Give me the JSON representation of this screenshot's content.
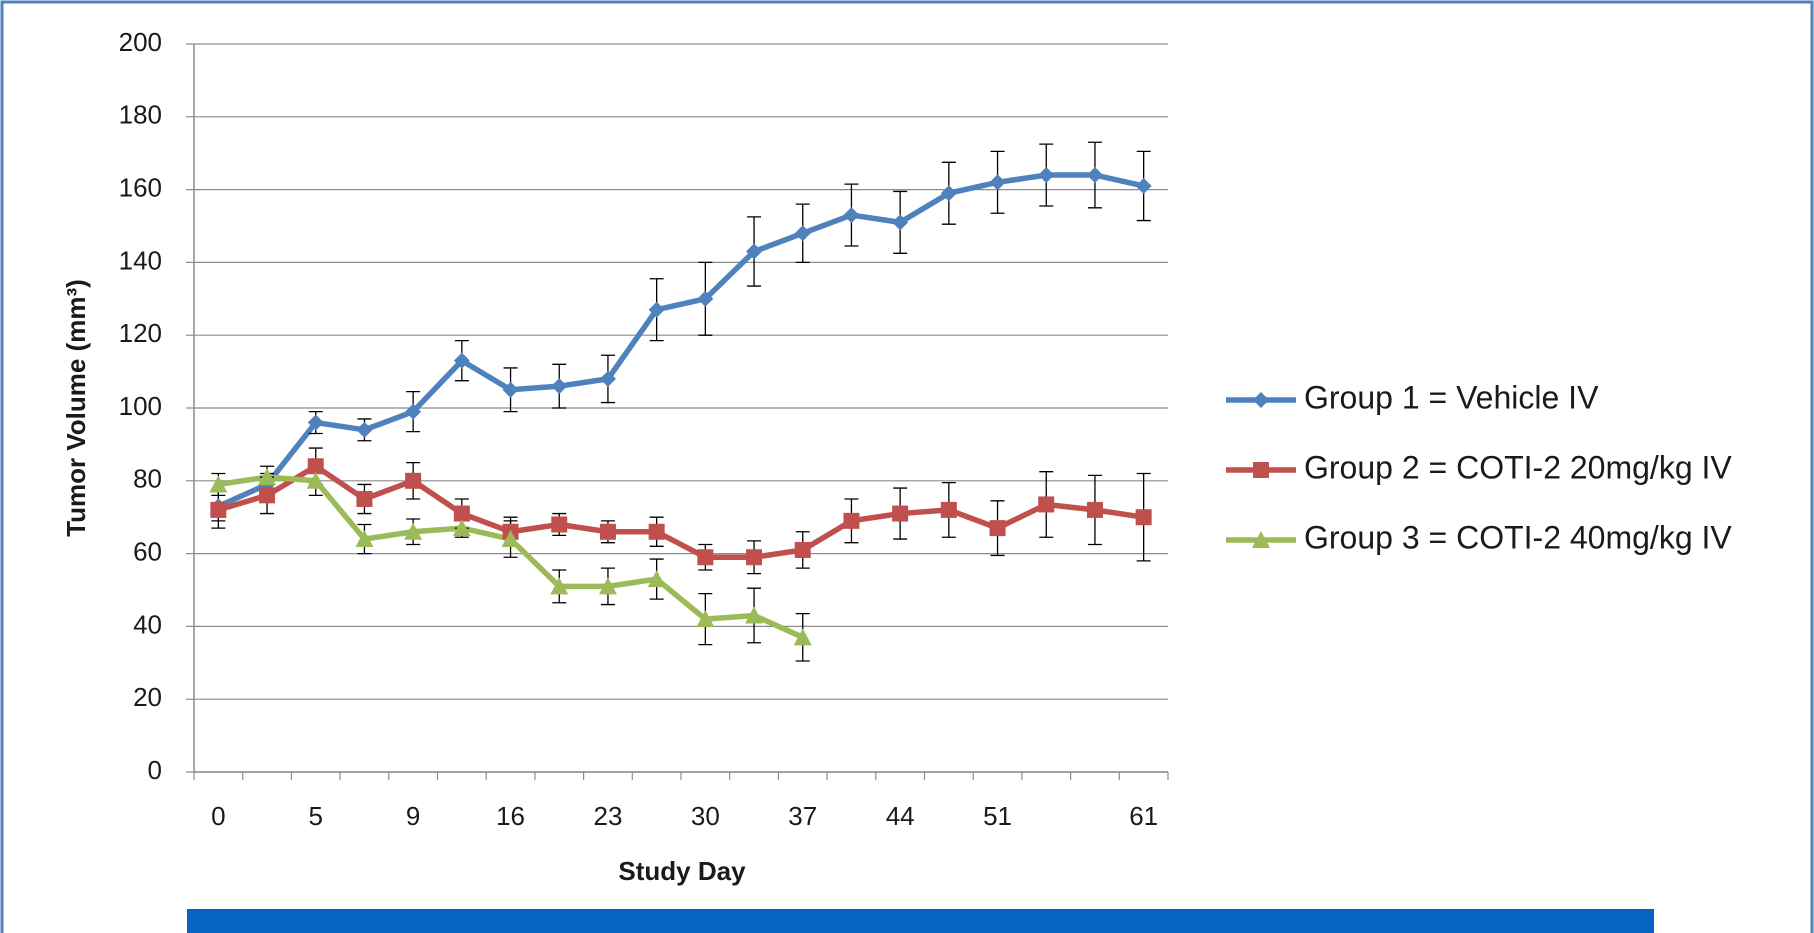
{
  "chart_data": {
    "type": "line",
    "x_label": "Study Day",
    "y_label": "Tumor Volume (mm³)",
    "categories": [
      "0",
      null,
      "5",
      null,
      "9",
      null,
      "16",
      null,
      "23",
      null,
      "30",
      null,
      "37",
      null,
      "44",
      null,
      "51",
      null,
      null,
      "61"
    ],
    "ylim": [
      0,
      200
    ],
    "yticks": [
      0,
      20,
      40,
      60,
      80,
      100,
      120,
      140,
      160,
      180,
      200
    ],
    "grid": true,
    "legend": "right",
    "series": [
      {
        "name": "Group 1 = Vehicle IV",
        "color": "#4f81bd",
        "marker": "diamond",
        "values": [
          73,
          79,
          96,
          94,
          99,
          113,
          105,
          106,
          108,
          127,
          130,
          143,
          148,
          153,
          151,
          159,
          162,
          164,
          164,
          161
        ],
        "errors": [
          4,
          3,
          3,
          3,
          5.5,
          5.5,
          6,
          6,
          6.5,
          8.5,
          10,
          9.5,
          8,
          8.5,
          8.5,
          8.5,
          8.5,
          8.5,
          9,
          9.5
        ]
      },
      {
        "name": "Group 2 = COTI-2 20mg/kg IV",
        "color": "#c0504d",
        "marker": "square",
        "values": [
          72,
          76,
          84,
          75,
          80,
          71,
          66,
          68,
          66,
          66,
          59,
          59,
          61,
          69,
          71,
          72,
          67,
          73.5,
          72,
          70
        ],
        "errors": [
          5,
          5,
          5,
          4,
          5,
          4,
          4,
          3,
          3,
          4,
          3.5,
          4.5,
          5,
          6,
          7,
          7.5,
          7.5,
          9,
          9.5,
          12
        ]
      },
      {
        "name": "Group 3 = COTI-2 40mg/kg IV",
        "color": "#9bbb59",
        "marker": "triangle",
        "values": [
          79,
          81,
          80,
          64,
          66,
          67,
          64,
          51,
          51,
          53,
          42,
          43,
          37,
          null,
          null,
          null,
          null,
          null,
          null,
          null
        ],
        "errors": [
          3,
          3,
          4,
          4,
          3.5,
          2.5,
          5,
          4.5,
          5,
          5.5,
          7,
          7.5,
          6.5,
          null,
          null,
          null,
          null,
          null,
          null,
          null
        ]
      }
    ]
  }
}
